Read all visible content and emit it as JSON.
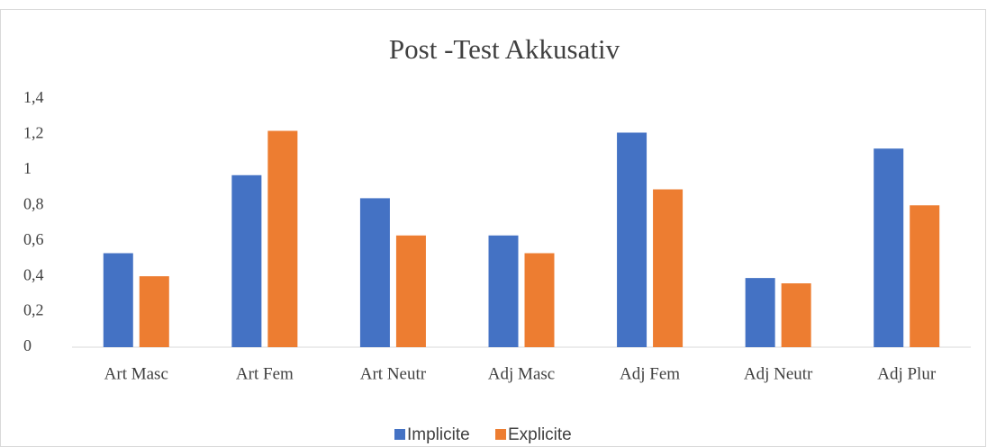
{
  "chart_data": {
    "type": "bar",
    "title": "Post -Test Akkusativ",
    "categories": [
      "Art Masc",
      "Art Fem",
      "Art Neutr",
      "Adj Masc",
      "Adj Fem",
      "Adj Neutr",
      "Adj Plur"
    ],
    "series": [
      {
        "name": "Implicite",
        "color": "#4472c4",
        "values": [
          0.53,
          0.97,
          0.84,
          0.63,
          1.21,
          0.39,
          1.12
        ]
      },
      {
        "name": "Explicite",
        "color": "#ed7d31",
        "values": [
          0.4,
          1.22,
          0.63,
          0.53,
          0.89,
          0.36,
          0.8
        ]
      }
    ],
    "ylim": [
      0,
      1.4
    ],
    "yticks": [
      0,
      {
        "value": 0.2,
        "label": "0,2"
      },
      {
        "value": 0.4,
        "label": "0,4"
      },
      {
        "value": 0.6,
        "label": "0,6"
      },
      {
        "value": 0.8,
        "label": "0,8"
      },
      1,
      {
        "value": 1.2,
        "label": "1,2"
      },
      {
        "value": 1.4,
        "label": "1,4"
      }
    ],
    "grid": false,
    "legend": "bottom"
  }
}
